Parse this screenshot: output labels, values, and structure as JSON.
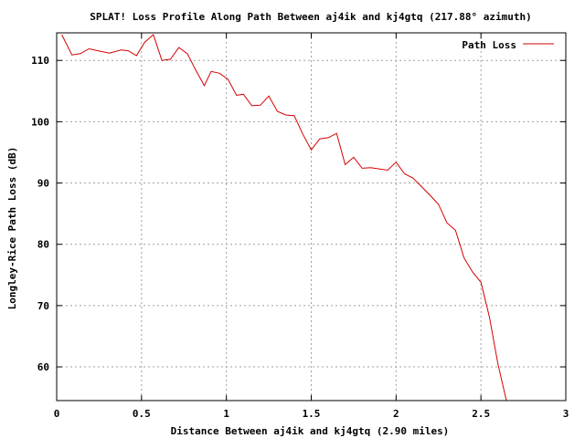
{
  "chart_data": {
    "type": "line",
    "title": "SPLAT! Loss Profile Along Path Between aj4ik and kj4gtq (217.88° azimuth)",
    "xlabel": "Distance Between aj4ik and kj4gtq (2.90 miles)",
    "ylabel": "Longley-Rice Path Loss (dB)",
    "xlim": [
      0,
      3
    ],
    "ylim": [
      54.5,
      114.5
    ],
    "xticks": [
      "0",
      "0.5",
      "1",
      "1.5",
      "2",
      "2.5",
      "3"
    ],
    "yticks": [
      "60",
      "70",
      "80",
      "90",
      "100",
      "110"
    ],
    "xtick_values": [
      0,
      0.5,
      1,
      1.5,
      2,
      2.5,
      3
    ],
    "ytick_values": [
      60,
      70,
      80,
      90,
      100,
      110
    ],
    "grid": true,
    "legend_position": "top-right",
    "series": [
      {
        "name": "Path Loss",
        "color": "#d40000",
        "x": [
          0.03,
          0.09,
          0.14,
          0.19,
          0.24,
          0.31,
          0.38,
          0.42,
          0.47,
          0.52,
          0.57,
          0.62,
          0.67,
          0.72,
          0.77,
          0.82,
          0.87,
          0.91,
          0.96,
          1.01,
          1.06,
          1.1,
          1.15,
          1.2,
          1.25,
          1.3,
          1.35,
          1.4,
          1.45,
          1.5,
          1.55,
          1.6,
          1.65,
          1.7,
          1.75,
          1.8,
          1.85,
          1.9,
          1.95,
          2.0,
          2.05,
          2.1,
          2.15,
          2.2,
          2.25,
          2.3,
          2.35,
          2.4,
          2.45,
          2.5,
          2.55,
          2.6,
          2.65,
          2.7,
          2.75,
          2.8,
          2.84
        ],
        "y": [
          114.2,
          110.9,
          111.1,
          111.9,
          111.6,
          111.2,
          111.7,
          111.6,
          110.8,
          113.0,
          114.2,
          110.0,
          110.2,
          112.1,
          111.1,
          108.4,
          105.9,
          108.2,
          107.9,
          106.9,
          104.3,
          104.5,
          102.6,
          102.7,
          104.2,
          101.7,
          101.1,
          101.0,
          98.0,
          95.4,
          97.2,
          97.4,
          98.1,
          93.0,
          94.2,
          92.4,
          92.5,
          92.3,
          92.1,
          93.4,
          91.5,
          90.8,
          89.4,
          88.0,
          86.5,
          83.5,
          82.3,
          77.8,
          75.5,
          73.8,
          68.1,
          60.5,
          54.5,
          54.5,
          54.5,
          54.5,
          54.5
        ]
      }
    ]
  }
}
